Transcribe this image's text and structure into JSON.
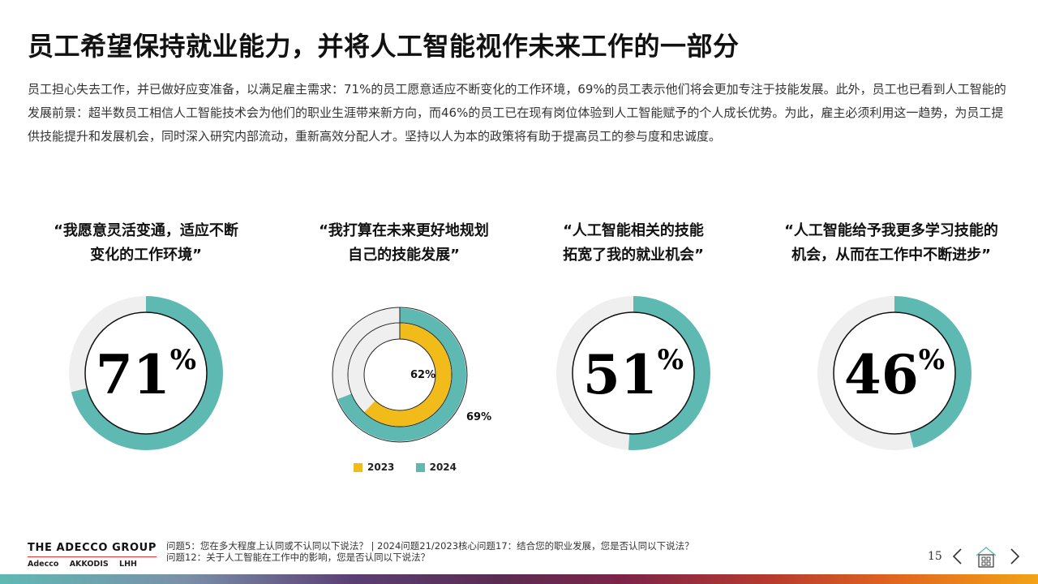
{
  "title": "员工希望保持就业能力，并将人工智能视作未来工作的一部分",
  "intro": "员工担心失去工作，并已做好应变准备，以满足雇主需求：71%的员工愿意适应不断变化的工作环境，69%的员工表示他们将会更加专注于技能发展。此外，员工也已看到人工智能的发展前景：超半数员工相信人工智能技术会为他们的职业生涯带来新方向，而46%的员工已在现有岗位体验到人工智能赋予的个人成长优势。为此，雇主必须利用这一趋势，为员工提供技能提升和发展机会，同时深入研究内部流动，重新高效分配人才。坚持以人为本的政策将有助于提高员工的参与度和忠诚度。",
  "colors": {
    "teal": "#5fb9b3",
    "yellow": "#f1bc1a",
    "track": "#efefef"
  },
  "charts": [
    {
      "quote_lines": [
        "“我愿意灵活变通，适应不断",
        "变化的工作环境”"
      ],
      "value_label": "71",
      "unit": "%"
    },
    {
      "quote_lines": [
        "“我打算在未来更好地规划",
        "自己的技能发展”"
      ],
      "inner_label": "62%",
      "outer_label": "69%"
    },
    {
      "quote_lines": [
        "“人工智能相关的技能",
        "拓宽了我的就业机会”"
      ],
      "value_label": "51",
      "unit": "%"
    },
    {
      "quote_lines": [
        "“人工智能给予我更多学习技能的",
        "机会，从而在工作中不断进步”"
      ],
      "value_label": "46",
      "unit": "%"
    }
  ],
  "chart_data": [
    {
      "type": "pie",
      "title": "“我愿意灵活变通，适应不断变化的工作环境”",
      "values": [
        71
      ],
      "unit": "%"
    },
    {
      "type": "pie",
      "title": "“我打算在未来更好地规划自己的技能发展”",
      "series": [
        {
          "name": "2023",
          "values": [
            62
          ],
          "color": "#f1bc1a"
        },
        {
          "name": "2024",
          "values": [
            69
          ],
          "color": "#5fb9b3"
        }
      ],
      "unit": "%",
      "legend": "bottom"
    },
    {
      "type": "pie",
      "title": "“人工智能相关的技能拓宽了我的就业机会”",
      "values": [
        51
      ],
      "unit": "%"
    },
    {
      "type": "pie",
      "title": "“人工智能给予我更多学习技能的机会，从而在工作中不断进步”",
      "values": [
        46
      ],
      "unit": "%"
    }
  ],
  "legend": {
    "items": [
      {
        "label": "2023",
        "color": "#f1bc1a"
      },
      {
        "label": "2024",
        "color": "#5fb9b3"
      }
    ]
  },
  "footer": {
    "brand": "THE ADECCO GROUP",
    "sub_brands": [
      "Adecco",
      "AKKODIS",
      "LHH"
    ],
    "note_line1": "问题5：您在多大程度上认同或不认同以下说法？ | 2024问题21/2023核心问题17：结合您的职业发展，您是否认同以下说法？",
    "note_line2": "问题12：关于人工智能在工作中的影响，您是否认同以下说法？"
  },
  "page_number": "15",
  "nav": {
    "prev_icon": "chevron-left-icon",
    "home_icon": "home-icon",
    "next_icon": "chevron-right-icon"
  }
}
